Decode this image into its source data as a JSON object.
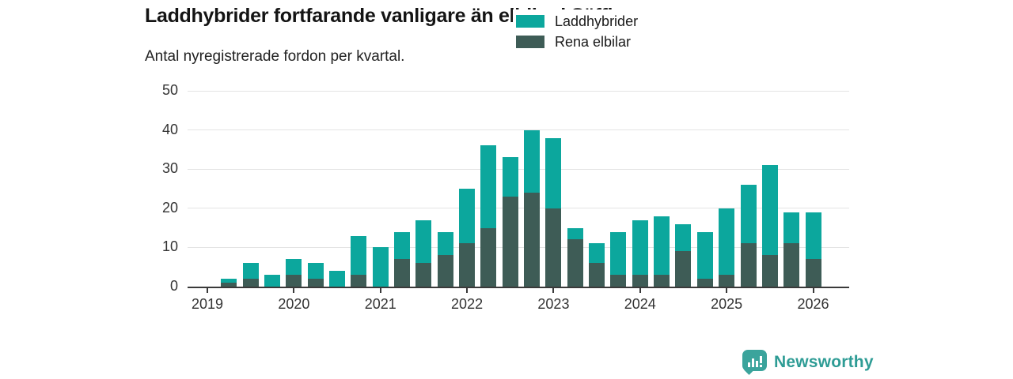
{
  "title": "Laddhybrider fortfarande vanligare än elbilar i Säffle",
  "subtitle": "Antal nyregistrerade fordon per kvartal.",
  "colors": {
    "teal": "#0ca79d",
    "dark_green": "#3e5c56",
    "axis_text": "#333333",
    "axis_line": "#3a3a3a",
    "gridline": "#e3e3e3",
    "logo_icon": "#3ba49c",
    "logo_text": "#2e9c95"
  },
  "legend": [
    {
      "label": "Laddhybrider",
      "color": "#0ca79d"
    },
    {
      "label": "Rena elbilar",
      "color": "#3e5c56"
    }
  ],
  "brand": {
    "name": "Newsworthy",
    "icon": "bar-chart-speech-bubble"
  },
  "chart_data": {
    "type": "bar",
    "stacked": true,
    "title": "Laddhybrider fortfarande vanligare än elbilar i Säffle",
    "subtitle": "Antal nyregistrerade fordon per kvartal.",
    "xlabel": "",
    "ylabel": "",
    "ylim": [
      0,
      50
    ],
    "yticks": [
      0,
      10,
      20,
      30,
      40,
      50
    ],
    "grid": true,
    "legend_position": "top-right",
    "x": [
      "2019-Q2",
      "2019-Q3",
      "2019-Q4",
      "2020-Q1",
      "2020-Q2",
      "2020-Q3",
      "2020-Q4",
      "2021-Q1",
      "2021-Q2",
      "2021-Q3",
      "2021-Q4",
      "2022-Q1",
      "2022-Q2",
      "2022-Q3",
      "2022-Q4",
      "2023-Q1",
      "2023-Q2",
      "2023-Q3",
      "2023-Q4",
      "2024-Q1",
      "2024-Q2",
      "2024-Q3",
      "2024-Q4",
      "2025-Q1",
      "2025-Q2",
      "2025-Q3",
      "2025-Q4",
      "2026-Q1"
    ],
    "series": [
      {
        "name": "Rena elbilar",
        "color": "#3e5c56",
        "stack_position": "bottom",
        "values": [
          1,
          2,
          0,
          3,
          2,
          0,
          3,
          0,
          7,
          6,
          8,
          11,
          15,
          23,
          24,
          20,
          12,
          6,
          3,
          3,
          3,
          9,
          2,
          3,
          11,
          8,
          11,
          7
        ]
      },
      {
        "name": "Laddhybrider",
        "color": "#0ca79d",
        "stack_position": "top",
        "values": [
          1,
          4,
          3,
          4,
          4,
          4,
          10,
          10,
          7,
          11,
          6,
          14,
          21,
          10,
          16,
          18,
          3,
          5,
          11,
          14,
          15,
          7,
          12,
          17,
          15,
          23,
          8,
          12
        ]
      }
    ],
    "totals": [
      2,
      6,
      3,
      7,
      6,
      4,
      13,
      10,
      14,
      17,
      14,
      25,
      36,
      33,
      40,
      38,
      15,
      11,
      14,
      17,
      18,
      16,
      14,
      20,
      26,
      31,
      19,
      19
    ],
    "xticks": [
      "2019",
      "2020",
      "2021",
      "2022",
      "2023",
      "2024",
      "2025",
      "2026"
    ],
    "xtick_at_quarter": "Q1"
  }
}
